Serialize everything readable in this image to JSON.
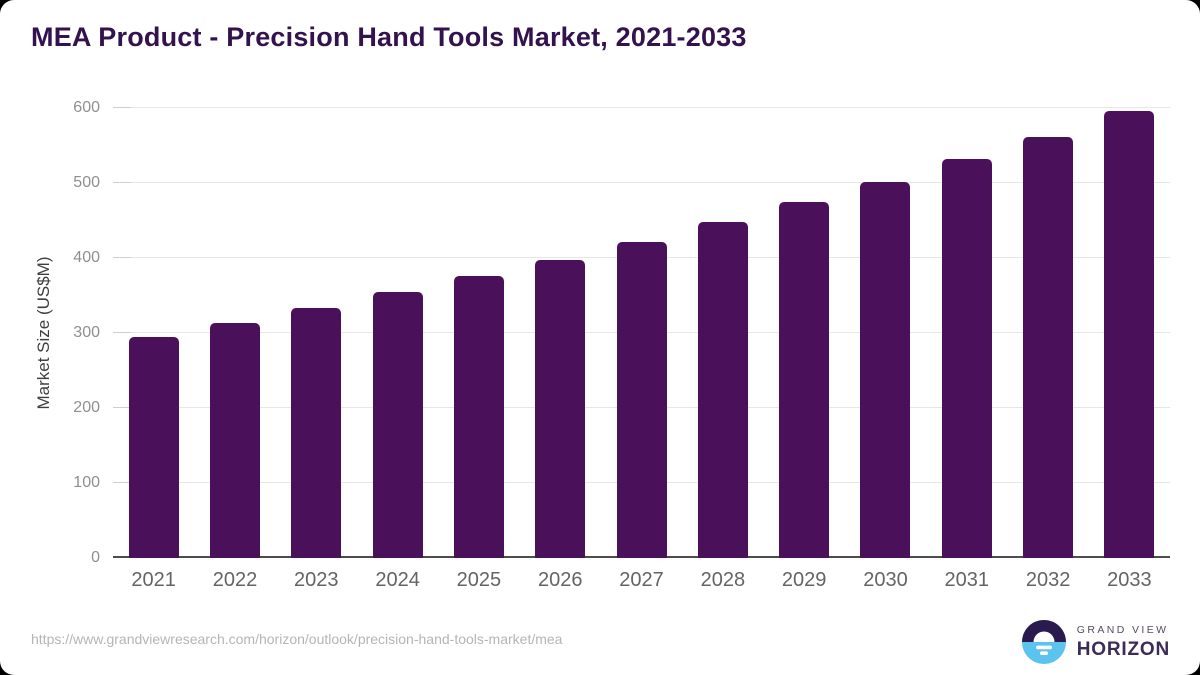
{
  "page": {
    "title": "MEA Product - Precision Hand Tools Market, 2021-2033"
  },
  "footer": {
    "source_url": "https://www.grandviewresearch.com/horizon/outlook/precision-hand-tools-market/mea",
    "logo_top": "GRAND VIEW",
    "logo_bottom": "HORIZON"
  },
  "chart_data": {
    "type": "bar",
    "title": "MEA Product - Precision Hand Tools Market, 2021-2033",
    "categories": [
      "2021",
      "2022",
      "2023",
      "2024",
      "2025",
      "2026",
      "2027",
      "2028",
      "2029",
      "2030",
      "2031",
      "2032",
      "2033"
    ],
    "values": [
      295,
      314,
      333,
      355,
      376,
      398,
      422,
      448,
      475,
      502,
      532,
      562,
      596
    ],
    "xlabel": "",
    "ylabel": "Market Size (US$M)",
    "ylim": [
      0,
      600
    ],
    "yticks": [
      0,
      100,
      200,
      300,
      400,
      500,
      600
    ],
    "grid": true,
    "legend_position": "none",
    "bar_color": "#4a1059"
  },
  "colors": {
    "bar": "#4a1059",
    "title": "#33124e",
    "axis_line": "#4d4d4d",
    "gridline": "#e7e7e7",
    "y_tick_label": "#8f8f8f",
    "x_tick_label": "#646464",
    "source_url": "#b5b5b5",
    "logo_dark": "#2a1a4e",
    "logo_blue": "#5cc3ef"
  }
}
